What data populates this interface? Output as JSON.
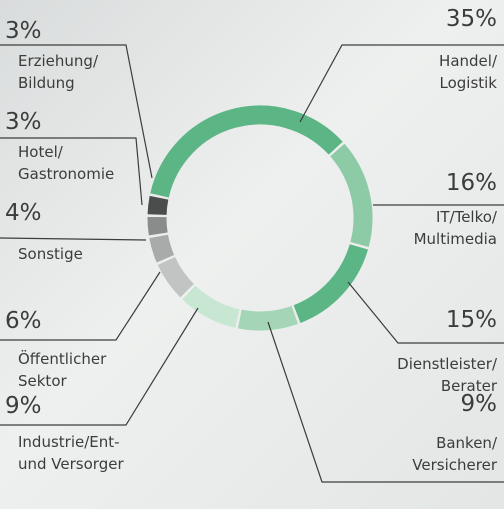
{
  "chart_data": {
    "type": "donut",
    "categories": [
      "Handel/\nLogistik",
      "IT/Telko/\nMultimedia",
      "Dienstleister/\nBerater",
      "Banken/\nVersicherer",
      "Industrie/Ent-\nund Versorger",
      "Öffentlicher\nSektor",
      "Sonstige",
      "Hotel/\nGastronomie",
      "Erziehung/\nBildung"
    ],
    "values": [
      35,
      16,
      15,
      9,
      9,
      6,
      4,
      3,
      3
    ],
    "value_labels": [
      "35%",
      "16%",
      "15%",
      "9%",
      "9%",
      "6%",
      "4%",
      "3%",
      "3%"
    ],
    "colors": [
      "#5cb585",
      "#8dcaa6",
      "#5cb585",
      "#a3d5b6",
      "#c8e7d2",
      "#c2c4c4",
      "#a9abab",
      "#8a8c8c",
      "#4b4d4d"
    ]
  }
}
